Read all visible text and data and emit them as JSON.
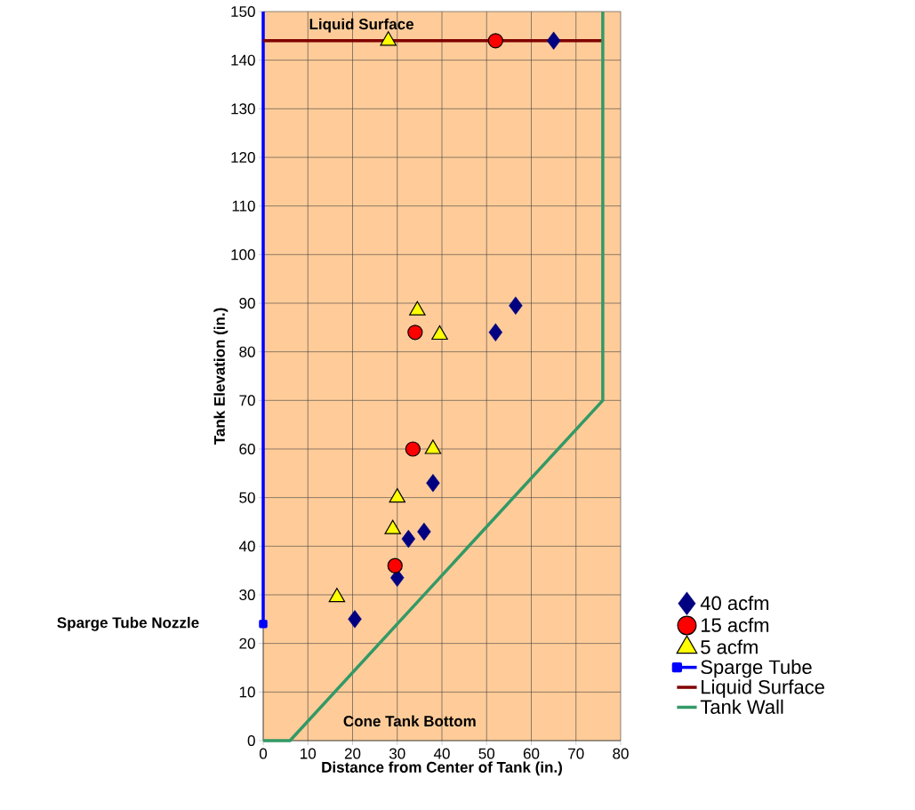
{
  "chart_data": {
    "type": "scatter",
    "xlabel": "Distance from Center of Tank (in.)",
    "ylabel": "Tank Elevation (in.)",
    "xlim": [
      0,
      80
    ],
    "ylim": [
      0,
      150
    ],
    "xticks": [
      0,
      10,
      20,
      30,
      40,
      50,
      60,
      70,
      80
    ],
    "yticks": [
      0,
      10,
      20,
      30,
      40,
      50,
      60,
      70,
      80,
      90,
      100,
      110,
      120,
      130,
      140,
      150
    ],
    "grid": true,
    "legend": "right",
    "series": [
      {
        "name": "40 acfm",
        "marker": "diamond",
        "color": "#000080",
        "x": [
          65,
          56.5,
          52,
          38,
          36,
          32.5,
          30,
          20.5
        ],
        "values": [
          144,
          89.5,
          84,
          53,
          43,
          41.5,
          33.5,
          25
        ]
      },
      {
        "name": "15 acfm",
        "marker": "circle",
        "color": "#ff0000",
        "x": [
          52,
          34,
          33.5,
          29.5
        ],
        "values": [
          144,
          84,
          60,
          36
        ]
      },
      {
        "name": "5 acfm",
        "marker": "triangle",
        "color": "#ffff00",
        "x": [
          28,
          34.5,
          39.5,
          38,
          30,
          29,
          16.5
        ],
        "values": [
          144,
          88.5,
          83.5,
          60,
          50,
          43.5,
          29.5
        ]
      },
      {
        "name": "Sparge Tube",
        "type": "line",
        "marker": "square",
        "color": "#0000ff",
        "x": [
          0,
          0
        ],
        "values": [
          24,
          150
        ]
      },
      {
        "name": "Liquid Surface",
        "type": "line",
        "color": "#800000",
        "x": [
          0,
          76
        ],
        "values": [
          144,
          144
        ]
      },
      {
        "name": "Tank Wall",
        "type": "line",
        "color": "#339966",
        "x": [
          0,
          6,
          76,
          76
        ],
        "values": [
          0,
          0,
          70,
          150
        ]
      }
    ],
    "annotations": [
      "Liquid Surface",
      "Cone Tank Bottom",
      "Sparge Tube Nozzle"
    ]
  }
}
